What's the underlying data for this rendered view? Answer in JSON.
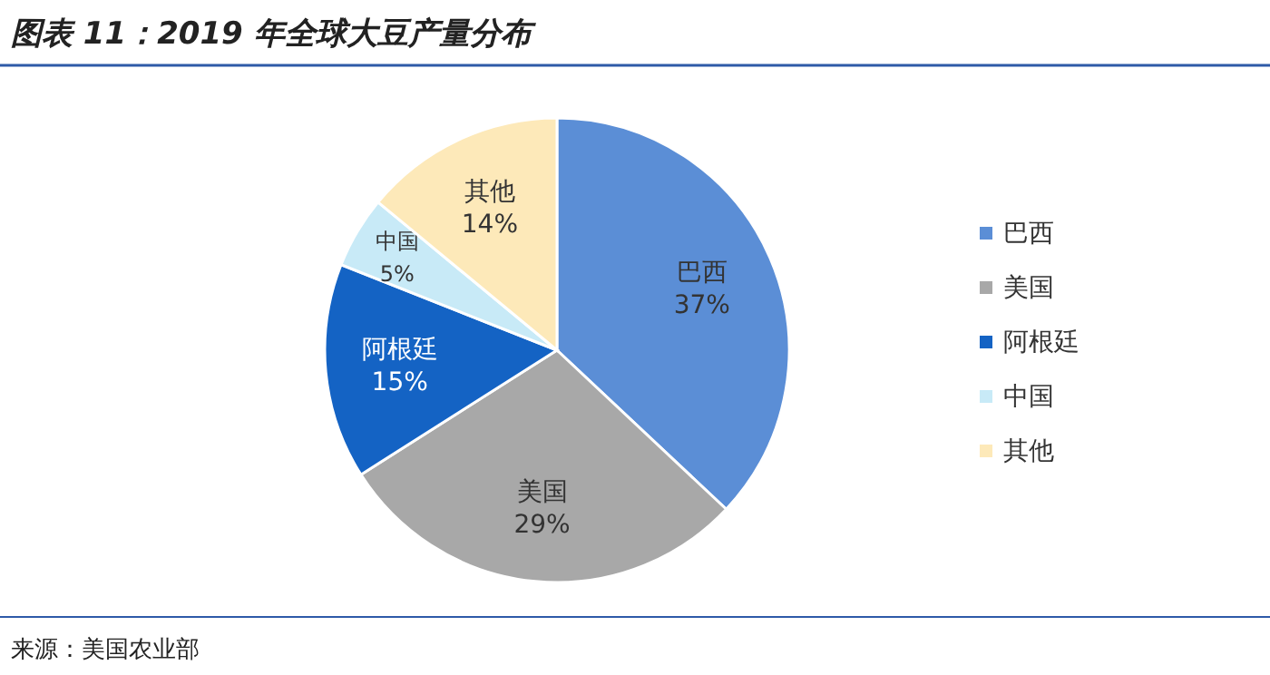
{
  "chart_data": {
    "type": "pie",
    "title": "图表 11：2019 年全球大豆产量分布",
    "categories": [
      "巴西",
      "美国",
      "阿根廷",
      "中国",
      "其他"
    ],
    "values": [
      37,
      29,
      15,
      5,
      14
    ],
    "colors": [
      "#5b8ed6",
      "#a8a8a8",
      "#1463c4",
      "#c8eaf7",
      "#fde9b9"
    ],
    "value_labels": [
      "37%",
      "29%",
      "15%",
      "5%",
      "14%"
    ],
    "legend": "right",
    "annotations": [
      "来源：美国农业部"
    ]
  }
}
